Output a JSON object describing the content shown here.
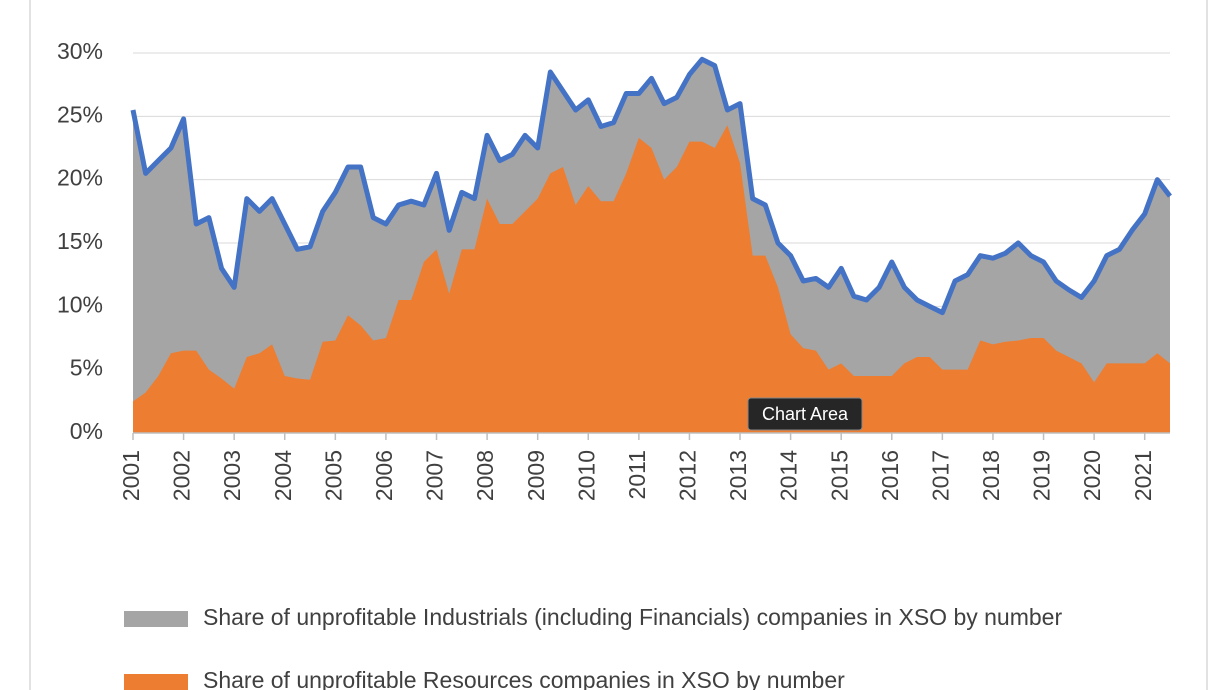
{
  "chart_data": {
    "type": "area",
    "categories": [
      "2001",
      null,
      null,
      null,
      "2002",
      null,
      null,
      null,
      "2003",
      null,
      null,
      null,
      "2004",
      null,
      null,
      null,
      "2005",
      null,
      null,
      null,
      "2006",
      null,
      null,
      null,
      "2007",
      null,
      null,
      null,
      "2008",
      null,
      null,
      null,
      "2009",
      null,
      null,
      null,
      "2010",
      null,
      null,
      null,
      "2011",
      null,
      null,
      null,
      "2012",
      null,
      null,
      null,
      "2013",
      null,
      null,
      null,
      "2014",
      null,
      null,
      null,
      "2015",
      null,
      null,
      null,
      "2016",
      null,
      null,
      null,
      "2017",
      null,
      null,
      null,
      "2018",
      null,
      null,
      null,
      "2019",
      null,
      null,
      null,
      "2020",
      null,
      null,
      null,
      "2021",
      null,
      null
    ],
    "series": [
      {
        "name": "Share of unprofitable Industrials (including Financials) companies in XSO by number",
        "color": "#a5a5a5",
        "line_color": "#4472c4",
        "values": [
          25.5,
          20.5,
          21.5,
          22.5,
          24.8,
          16.5,
          17,
          13,
          11.5,
          18.5,
          17.5,
          18.5,
          16.5,
          14.5,
          14.7,
          17.5,
          19,
          21,
          21,
          17,
          16.5,
          18,
          18.3,
          18,
          20.5,
          16,
          19,
          18.5,
          23.5,
          21.5,
          22,
          23.5,
          22.5,
          28.5,
          27,
          25.5,
          26.3,
          24.2,
          24.5,
          26.8,
          26.8,
          28,
          26,
          26.5,
          28.3,
          29.5,
          29,
          25.5,
          26,
          18.5,
          18,
          15,
          14,
          12,
          12.2,
          11.5,
          13,
          10.8,
          10.5,
          11.5,
          13.5,
          11.5,
          10.5,
          10,
          9.5,
          12,
          12.5,
          14,
          13.8,
          14.2,
          15,
          14,
          13.5,
          12,
          11.3,
          10.7,
          12,
          14,
          14.5,
          16,
          17.3,
          20,
          18.7
        ]
      },
      {
        "name": "Share of unprofitable Resources companies in XSO by number",
        "color": "#ed7d31",
        "values": [
          2.5,
          3.2,
          4.5,
          6.3,
          6.5,
          6.5,
          5,
          4.3,
          3.5,
          6,
          6.3,
          7,
          4.5,
          4.3,
          4.2,
          7.2,
          7.3,
          9.3,
          8.5,
          7.3,
          7.5,
          10.5,
          10.5,
          13.5,
          14.5,
          11,
          14.5,
          14.5,
          18.5,
          16.5,
          16.5,
          17.5,
          18.5,
          20.5,
          21,
          18,
          19.5,
          18.3,
          18.3,
          20.5,
          23.3,
          22.5,
          20,
          21,
          23,
          23,
          22.5,
          24.3,
          21.3,
          14,
          14,
          11.5,
          7.8,
          6.7,
          6.5,
          5,
          5.5,
          4.5,
          4.5,
          4.5,
          4.5,
          5.5,
          6,
          6,
          5,
          5,
          5,
          7.3,
          7,
          7.2,
          7.3,
          7.5,
          7.5,
          6.5,
          6,
          5.5,
          4,
          5.5,
          5.5,
          5.5,
          5.5,
          6.3,
          5.5
        ]
      }
    ],
    "ylim": [
      0,
      30
    ],
    "yticks": [
      {
        "value": 0,
        "label": "0%"
      },
      {
        "value": 5,
        "label": "5%"
      },
      {
        "value": 10,
        "label": "10%"
      },
      {
        "value": 15,
        "label": "15%"
      },
      {
        "value": 20,
        "label": "20%"
      },
      {
        "value": 25,
        "label": "25%"
      },
      {
        "value": 30,
        "label": "30%"
      }
    ],
    "grid": true,
    "tooltip": "Chart Area"
  }
}
